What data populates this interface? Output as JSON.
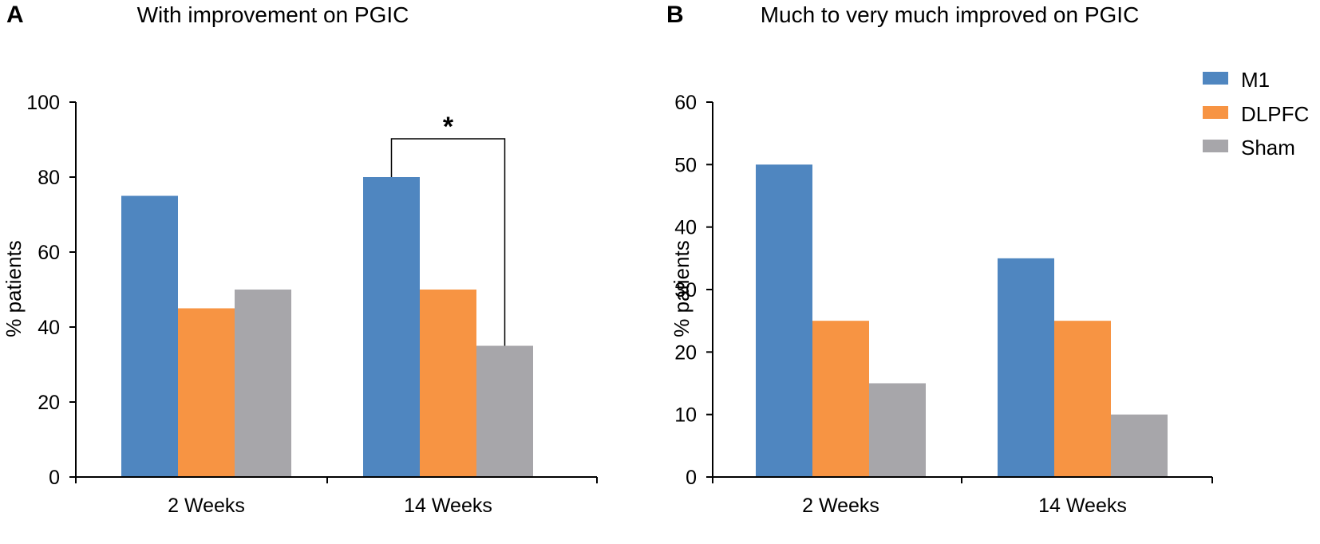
{
  "colors": {
    "M1": "#4f86c0",
    "DLPFC": "#f79443",
    "Sham": "#a7a6aa",
    "axis": "#000000"
  },
  "legend": {
    "items": [
      {
        "label": "M1",
        "color_key": "M1"
      },
      {
        "label": "DLPFC",
        "color_key": "DLPFC"
      },
      {
        "label": "Sham",
        "color_key": "Sham"
      }
    ]
  },
  "chart_data": [
    {
      "panel": "A",
      "type": "bar",
      "title": "With improvement on PGIC",
      "ylabel": "% patients",
      "xlabel": "",
      "categories": [
        "2 Weeks",
        "14 Weeks"
      ],
      "series": [
        {
          "name": "M1",
          "values": [
            75,
            80
          ]
        },
        {
          "name": "DLPFC",
          "values": [
            45,
            50
          ]
        },
        {
          "name": "Sham",
          "values": [
            50,
            35
          ]
        }
      ],
      "ylim": [
        0,
        100
      ],
      "yticks": [
        0,
        20,
        40,
        60,
        80,
        100
      ],
      "grid": false,
      "annotations": [
        {
          "type": "significance",
          "text": "*",
          "category": "14 Weeks",
          "from_series": "M1",
          "to_series": "Sham"
        }
      ]
    },
    {
      "panel": "B",
      "type": "bar",
      "title": "Much to very much improved on PGIC",
      "ylabel": "% patients",
      "xlabel": "",
      "categories": [
        "2 Weeks",
        "14 Weeks"
      ],
      "series": [
        {
          "name": "M1",
          "values": [
            50,
            35
          ]
        },
        {
          "name": "DLPFC",
          "values": [
            25,
            25
          ]
        },
        {
          "name": "Sham",
          "values": [
            15,
            10
          ]
        }
      ],
      "ylim": [
        0,
        60
      ],
      "yticks": [
        0,
        10,
        20,
        30,
        40,
        50,
        60
      ],
      "grid": false,
      "legend_position": "top-right"
    }
  ]
}
